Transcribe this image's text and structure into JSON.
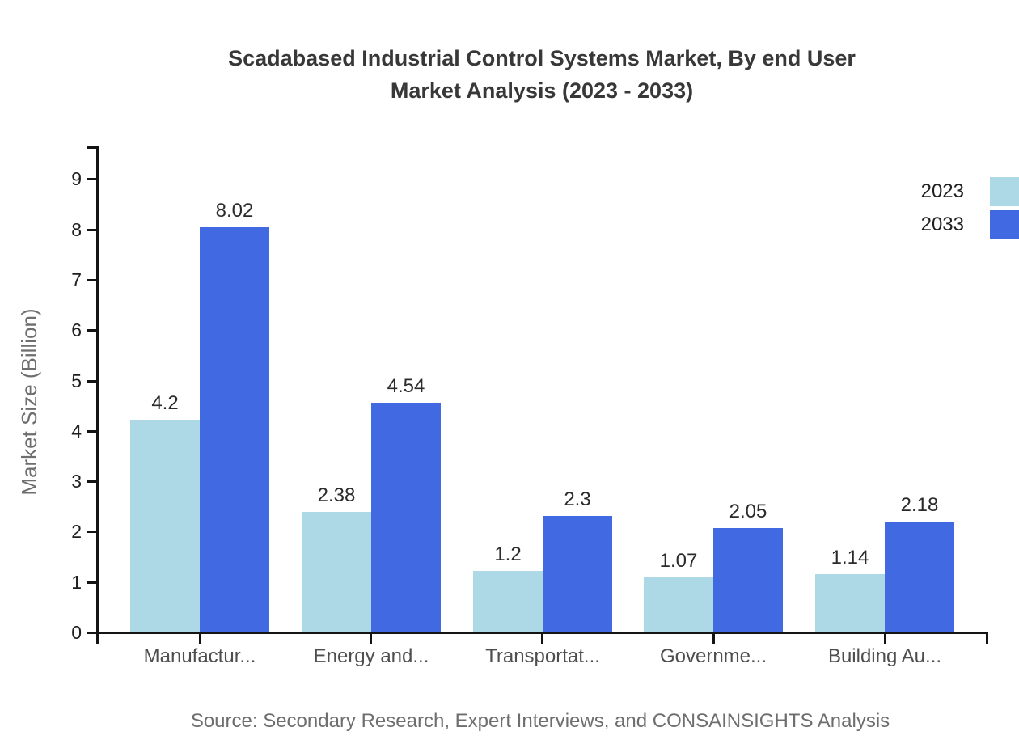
{
  "chart_data": {
    "type": "bar",
    "title": "Scadabased Industrial Control Systems Market, By end User Market Analysis (2023 - 2033)",
    "title_lines": [
      "Scadabased Industrial Control Systems Market, By end User",
      "Market Analysis (2023 - 2033)"
    ],
    "categories": [
      "Manufactur...",
      "Energy and...",
      "Transportat...",
      "Governme...",
      "Building Au..."
    ],
    "series": [
      {
        "name": "2023",
        "color": "#ADD8E6",
        "values": [
          4.2,
          2.38,
          1.2,
          1.07,
          1.14
        ]
      },
      {
        "name": "2033",
        "color": "#4169E1",
        "values": [
          8.02,
          4.54,
          2.3,
          2.05,
          2.18
        ]
      }
    ],
    "xlabel": "",
    "ylabel": "Market Size (Billion)",
    "y_ticks": [
      0,
      1,
      2,
      3,
      4,
      5,
      6,
      7,
      8,
      9
    ],
    "ylim": [
      0,
      9.5
    ],
    "grid": false,
    "legend_position": "top-right"
  },
  "footer": {
    "source": "Source: Secondary Research, Expert Interviews, and CONSAINSIGHTS Analysis"
  }
}
